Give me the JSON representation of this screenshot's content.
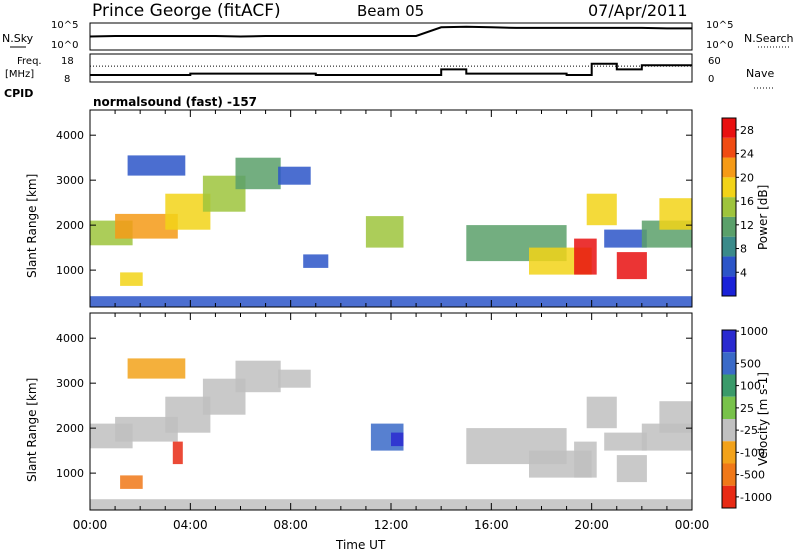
{
  "header": {
    "title": "Prince George (fitACF)",
    "beam": "Beam 05",
    "date": "07/Apr/2011",
    "cpid": "CPID",
    "mode": "normalsound (fast) -157"
  },
  "chart_data": [
    {
      "type": "line",
      "panel": "noise",
      "left_label": "N.Sky",
      "right_label": "N.Search",
      "left_ticks": [
        "10^5",
        "10^0"
      ],
      "right_ticks": [
        "10^5",
        "10^0"
      ],
      "scale": "log",
      "x": [
        "00:00",
        "01:00",
        "02:00",
        "03:00",
        "04:00",
        "05:00",
        "06:00",
        "07:00",
        "08:00",
        "09:00",
        "10:00",
        "11:00",
        "12:00",
        "13:00",
        "14:00",
        "15:00",
        "16:00",
        "17:00",
        "18:00",
        "19:00",
        "20:00",
        "21:00",
        "22:00",
        "23:00",
        "24:00"
      ],
      "series": [
        {
          "name": "N.Sky",
          "values": [
            2.5,
            2.6,
            2.6,
            2.6,
            2.6,
            2.6,
            2.5,
            2.6,
            2.6,
            2.6,
            2.6,
            2.6,
            2.6,
            2.6,
            4.2,
            4.3,
            4.2,
            4.1,
            4.1,
            4.1,
            4.1,
            4.1,
            4.1,
            4.0,
            4.0
          ]
        }
      ]
    },
    {
      "type": "line",
      "panel": "frequency",
      "left_label_line1": "Freq.",
      "left_label_line2": "[MHz]",
      "right_label": "Nave",
      "left_ticks": [
        "18",
        "8"
      ],
      "right_ticks": [
        "60",
        "0"
      ],
      "x": [
        "00:00",
        "01:00",
        "02:00",
        "03:00",
        "04:00",
        "05:00",
        "06:00",
        "07:00",
        "08:00",
        "09:00",
        "10:00",
        "11:00",
        "12:00",
        "13:00",
        "14:00",
        "15:00",
        "16:00",
        "17:00",
        "18:00",
        "19:00",
        "20:00",
        "21:00",
        "22:00",
        "23:00",
        "24:00"
      ],
      "series": [
        {
          "name": "Freq",
          "values": [
            10.5,
            10.5,
            10.5,
            10.5,
            11,
            11,
            11,
            11,
            11,
            10.5,
            10.5,
            10.5,
            10.5,
            10.5,
            12.5,
            11,
            11,
            11,
            11,
            10.5,
            14.5,
            12.5,
            14,
            14,
            14
          ]
        },
        {
          "name": "Nave",
          "values": [
            34,
            34,
            34,
            34,
            34,
            34,
            34,
            34,
            34,
            34,
            34,
            34,
            34,
            34,
            34,
            34,
            34,
            34,
            34,
            34,
            34,
            34,
            34,
            34,
            34
          ]
        }
      ]
    },
    {
      "type": "heatmap",
      "panel": "power",
      "ylabel": "Slant Range [km]",
      "y_ticks": [
        "1000",
        "2000",
        "3000",
        "4000"
      ],
      "ylim": [
        180,
        4560
      ],
      "xlim": [
        0,
        24
      ],
      "colorbar_label": "Power [dB]",
      "colorbar_ticks": [
        "4",
        "8",
        "12",
        "16",
        "20",
        "24",
        "28"
      ],
      "colorbar_range": [
        0,
        30
      ],
      "regions": [
        {
          "t0": 0.0,
          "t1": 1.7,
          "r0": 1550,
          "r1": 2100,
          "value": 16
        },
        {
          "t0": 1.0,
          "t1": 3.5,
          "r0": 1700,
          "r1": 2250,
          "value": 20
        },
        {
          "t0": 3.0,
          "t1": 4.8,
          "r0": 1900,
          "r1": 2700,
          "value": 18
        },
        {
          "t0": 4.5,
          "t1": 6.2,
          "r0": 2300,
          "r1": 3100,
          "value": 14
        },
        {
          "t0": 5.8,
          "t1": 7.6,
          "r0": 2800,
          "r1": 3500,
          "value": 12
        },
        {
          "t0": 1.5,
          "t1": 3.8,
          "r0": 3100,
          "r1": 3550,
          "value": 6
        },
        {
          "t0": 1.2,
          "t1": 2.1,
          "r0": 650,
          "r1": 950,
          "value": 18
        },
        {
          "t0": 7.5,
          "t1": 8.8,
          "r0": 2900,
          "r1": 3300,
          "value": 6
        },
        {
          "t0": 8.5,
          "t1": 9.5,
          "r0": 1050,
          "r1": 1350,
          "value": 6
        },
        {
          "t0": 11.0,
          "t1": 12.5,
          "r0": 1500,
          "r1": 2200,
          "value": 14
        },
        {
          "t0": 15.0,
          "t1": 19.0,
          "r0": 1200,
          "r1": 2000,
          "value": 12
        },
        {
          "t0": 17.5,
          "t1": 20.0,
          "r0": 900,
          "r1": 1500,
          "value": 18
        },
        {
          "t0": 19.3,
          "t1": 20.2,
          "r0": 900,
          "r1": 1700,
          "value": 28
        },
        {
          "t0": 19.8,
          "t1": 21.0,
          "r0": 2000,
          "r1": 2700,
          "value": 18
        },
        {
          "t0": 20.5,
          "t1": 22.2,
          "r0": 1500,
          "r1": 1900,
          "value": 6
        },
        {
          "t0": 21.0,
          "t1": 22.2,
          "r0": 800,
          "r1": 1400,
          "value": 28
        },
        {
          "t0": 22.0,
          "t1": 24.0,
          "r0": 1500,
          "r1": 2100,
          "value": 10
        },
        {
          "t0": 22.7,
          "t1": 24.0,
          "r0": 1900,
          "r1": 2600,
          "value": 18
        },
        {
          "t0": 0.0,
          "t1": 24.0,
          "r0": 180,
          "r1": 420,
          "value": 4
        }
      ]
    },
    {
      "type": "heatmap",
      "panel": "velocity",
      "ylabel": "Slant Range [km]",
      "y_ticks": [
        "1000",
        "2000",
        "3000",
        "4000"
      ],
      "ylim": [
        180,
        4560
      ],
      "xlim": [
        0,
        24
      ],
      "xlabel": "Time UT",
      "x_ticks": [
        "00:00",
        "04:00",
        "08:00",
        "12:00",
        "16:00",
        "20:00",
        "00:00"
      ],
      "colorbar_label": "Velocity [m s-1]",
      "colorbar_ticks": [
        "1000",
        "500",
        "100",
        "25",
        "-25",
        "-100",
        "-500",
        "-1000"
      ],
      "regions": [
        {
          "t0": 0.0,
          "t1": 1.7,
          "r0": 1550,
          "r1": 2100,
          "value": 0
        },
        {
          "t0": 1.0,
          "t1": 3.5,
          "r0": 1700,
          "r1": 2250,
          "value": 0
        },
        {
          "t0": 3.0,
          "t1": 4.8,
          "r0": 1900,
          "r1": 2700,
          "value": 0
        },
        {
          "t0": 4.5,
          "t1": 6.2,
          "r0": 2300,
          "r1": 3100,
          "value": 0
        },
        {
          "t0": 5.8,
          "t1": 7.6,
          "r0": 2800,
          "r1": 3500,
          "value": 0
        },
        {
          "t0": 1.5,
          "t1": 3.8,
          "r0": 3100,
          "r1": 3550,
          "value": -100
        },
        {
          "t0": 1.2,
          "t1": 2.1,
          "r0": 650,
          "r1": 950,
          "value": -300
        },
        {
          "t0": 3.3,
          "t1": 3.7,
          "r0": 1200,
          "r1": 1700,
          "value": -700
        },
        {
          "t0": 7.5,
          "t1": 8.8,
          "r0": 2900,
          "r1": 3300,
          "value": 0
        },
        {
          "t0": 11.2,
          "t1": 12.5,
          "r0": 1500,
          "r1": 2100,
          "value": 400
        },
        {
          "t0": 12.0,
          "t1": 12.5,
          "r0": 1600,
          "r1": 1900,
          "value": 900
        },
        {
          "t0": 15.0,
          "t1": 19.0,
          "r0": 1200,
          "r1": 2000,
          "value": 0
        },
        {
          "t0": 17.5,
          "t1": 20.0,
          "r0": 900,
          "r1": 1500,
          "value": 0
        },
        {
          "t0": 19.3,
          "t1": 20.2,
          "r0": 900,
          "r1": 1700,
          "value": 0
        },
        {
          "t0": 19.8,
          "t1": 21.0,
          "r0": 2000,
          "r1": 2700,
          "value": 0
        },
        {
          "t0": 20.5,
          "t1": 22.2,
          "r0": 1500,
          "r1": 1900,
          "value": 0
        },
        {
          "t0": 21.0,
          "t1": 22.2,
          "r0": 800,
          "r1": 1400,
          "value": 0
        },
        {
          "t0": 22.0,
          "t1": 24.0,
          "r0": 1500,
          "r1": 2100,
          "value": 0
        },
        {
          "t0": 22.7,
          "t1": 24.0,
          "r0": 1900,
          "r1": 2600,
          "value": 0
        },
        {
          "t0": 0.0,
          "t1": 24.0,
          "r0": 180,
          "r1": 420,
          "value": 0
        }
      ]
    }
  ]
}
